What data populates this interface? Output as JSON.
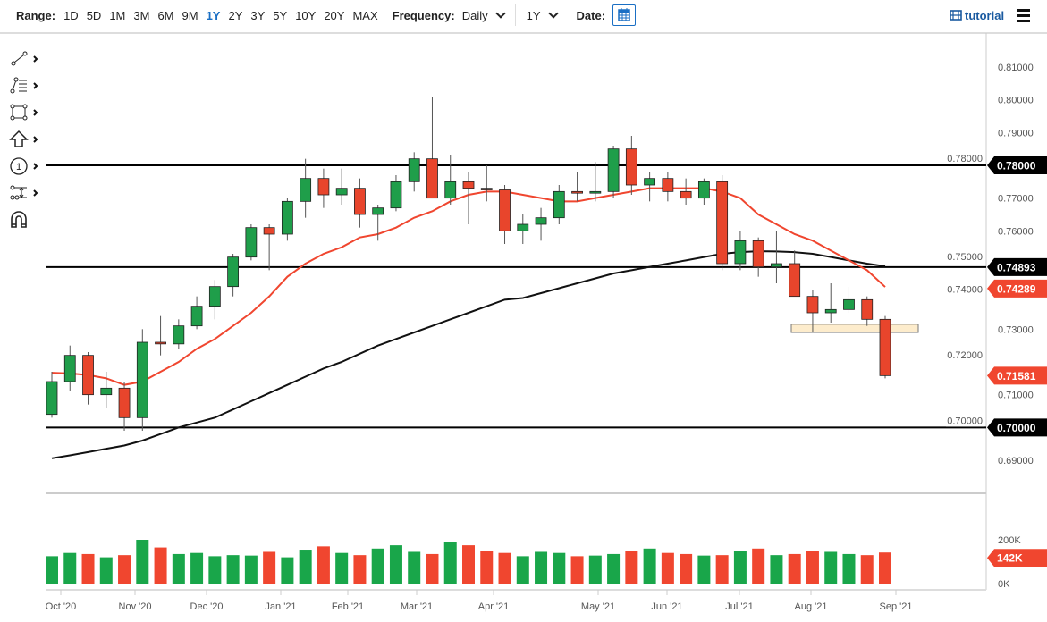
{
  "toolbar": {
    "range_label": "Range:",
    "ranges": [
      "1D",
      "5D",
      "1M",
      "3M",
      "6M",
      "9M",
      "1Y",
      "2Y",
      "3Y",
      "5Y",
      "10Y",
      "20Y",
      "MAX"
    ],
    "active_range": "1Y",
    "frequency_label": "Frequency:",
    "frequency_value": "Daily",
    "period_value": "1Y",
    "date_label": "Date:",
    "tutorial_label": "tutorial"
  },
  "colors": {
    "up": "#1f9e4a",
    "down": "#e8452c",
    "ma_fast": "#f0462f",
    "ma_slow": "#111111",
    "accent": "#1a6fc4",
    "zone": "#fdeccc"
  },
  "chart_data": {
    "type": "candlestick",
    "interval_shown": "weekly approximation of daily candles",
    "x_ticks": [
      "Oct '20",
      "Nov '20",
      "Dec '20",
      "Jan '21",
      "Feb '21",
      "Mar '21",
      "Apr '21",
      "May '21",
      "Jun '21",
      "Jul '21",
      "Aug '21",
      "Sep '21"
    ],
    "y_ticks": [
      "0.81000",
      "0.80000",
      "0.79000",
      "0.78000",
      "0.77000",
      "0.76000",
      "0.75000",
      "0.74000",
      "0.73000",
      "0.72000",
      "0.71000",
      "0.70000",
      "0.69000"
    ],
    "ylim": [
      0.69,
      0.81
    ],
    "weeks": [
      "2020-09-28",
      "2020-10-05",
      "2020-10-12",
      "2020-10-19",
      "2020-10-26",
      "2020-11-02",
      "2020-11-09",
      "2020-11-16",
      "2020-11-23",
      "2020-11-30",
      "2020-12-07",
      "2020-12-14",
      "2020-12-21",
      "2020-12-28",
      "2021-01-04",
      "2021-01-11",
      "2021-01-18",
      "2021-01-25",
      "2021-02-01",
      "2021-02-08",
      "2021-02-15",
      "2021-02-22",
      "2021-03-01",
      "2021-03-08",
      "2021-03-15",
      "2021-03-22",
      "2021-03-29",
      "2021-04-05",
      "2021-04-12",
      "2021-04-19",
      "2021-04-26",
      "2021-05-03",
      "2021-05-10",
      "2021-05-17",
      "2021-05-24",
      "2021-05-31",
      "2021-06-07",
      "2021-06-14",
      "2021-06-21",
      "2021-06-28",
      "2021-07-05",
      "2021-07-12",
      "2021-07-19",
      "2021-07-26",
      "2021-08-02",
      "2021-08-09",
      "2021-08-16"
    ],
    "ohlc": [
      [
        0.704,
        0.717,
        0.703,
        0.714
      ],
      [
        0.714,
        0.725,
        0.711,
        0.722
      ],
      [
        0.722,
        0.723,
        0.707,
        0.71
      ],
      [
        0.71,
        0.717,
        0.706,
        0.712
      ],
      [
        0.712,
        0.714,
        0.699,
        0.703
      ],
      [
        0.703,
        0.73,
        0.699,
        0.726
      ],
      [
        0.726,
        0.734,
        0.722,
        0.7255
      ],
      [
        0.7255,
        0.733,
        0.724,
        0.731
      ],
      [
        0.731,
        0.74,
        0.73,
        0.737
      ],
      [
        0.737,
        0.745,
        0.733,
        0.743
      ],
      [
        0.743,
        0.753,
        0.74,
        0.752
      ],
      [
        0.752,
        0.762,
        0.751,
        0.761
      ],
      [
        0.761,
        0.762,
        0.748,
        0.759
      ],
      [
        0.759,
        0.77,
        0.757,
        0.769
      ],
      [
        0.769,
        0.782,
        0.764,
        0.776
      ],
      [
        0.776,
        0.779,
        0.767,
        0.771
      ],
      [
        0.771,
        0.779,
        0.768,
        0.773
      ],
      [
        0.773,
        0.776,
        0.761,
        0.765
      ],
      [
        0.765,
        0.768,
        0.757,
        0.767
      ],
      [
        0.767,
        0.777,
        0.766,
        0.775
      ],
      [
        0.775,
        0.784,
        0.772,
        0.782
      ],
      [
        0.782,
        0.801,
        0.77,
        0.77
      ],
      [
        0.77,
        0.783,
        0.768,
        0.775
      ],
      [
        0.775,
        0.778,
        0.762,
        0.773
      ],
      [
        0.773,
        0.78,
        0.769,
        0.7725
      ],
      [
        0.7725,
        0.774,
        0.756,
        0.76
      ],
      [
        0.76,
        0.765,
        0.756,
        0.762
      ],
      [
        0.762,
        0.767,
        0.757,
        0.764
      ],
      [
        0.764,
        0.774,
        0.762,
        0.772
      ],
      [
        0.772,
        0.778,
        0.769,
        0.7715
      ],
      [
        0.7715,
        0.781,
        0.769,
        0.772
      ],
      [
        0.772,
        0.786,
        0.77,
        0.785
      ],
      [
        0.785,
        0.789,
        0.771,
        0.774
      ],
      [
        0.774,
        0.778,
        0.769,
        0.776
      ],
      [
        0.776,
        0.778,
        0.769,
        0.772
      ],
      [
        0.772,
        0.776,
        0.768,
        0.77
      ],
      [
        0.77,
        0.776,
        0.768,
        0.775
      ],
      [
        0.775,
        0.777,
        0.748,
        0.75
      ],
      [
        0.75,
        0.76,
        0.748,
        0.757
      ],
      [
        0.757,
        0.758,
        0.746,
        0.749
      ],
      [
        0.749,
        0.76,
        0.744,
        0.75
      ],
      [
        0.75,
        0.754,
        0.74,
        0.74
      ],
      [
        0.74,
        0.742,
        0.729,
        0.735
      ],
      [
        0.735,
        0.744,
        0.732,
        0.736
      ],
      [
        0.736,
        0.743,
        0.735,
        0.739
      ],
      [
        0.739,
        0.74,
        0.731,
        0.733
      ],
      [
        0.733,
        0.734,
        0.715,
        0.71581
      ]
    ],
    "volume_k": [
      125,
      140,
      135,
      120,
      130,
      200,
      165,
      135,
      140,
      125,
      130,
      128,
      145,
      120,
      155,
      170,
      140,
      130,
      160,
      175,
      145,
      135,
      190,
      175,
      150,
      140,
      125,
      145,
      140,
      125,
      128,
      135,
      150,
      160,
      140,
      135,
      128,
      130,
      150,
      160,
      130,
      135,
      150,
      145,
      135,
      130,
      142
    ],
    "volume_ticks": [
      "200K",
      "0K"
    ],
    "volume_ylim": [
      0,
      200
    ],
    "ma_fast": [
      0.7167,
      0.7165,
      0.716,
      0.715,
      0.713,
      0.714,
      0.717,
      0.72,
      0.724,
      0.727,
      0.731,
      0.735,
      0.74,
      0.746,
      0.75,
      0.753,
      0.755,
      0.758,
      0.759,
      0.761,
      0.764,
      0.766,
      0.769,
      0.771,
      0.772,
      0.772,
      0.771,
      0.77,
      0.769,
      0.769,
      0.77,
      0.771,
      0.772,
      0.773,
      0.773,
      0.773,
      0.773,
      0.772,
      0.77,
      0.765,
      0.762,
      0.759,
      0.757,
      0.754,
      0.751,
      0.748,
      0.74289
    ],
    "ma_slow": [
      0.6906,
      0.6915,
      0.6925,
      0.6935,
      0.6945,
      0.696,
      0.698,
      0.7,
      0.7015,
      0.703,
      0.7055,
      0.708,
      0.7105,
      0.713,
      0.7155,
      0.718,
      0.72,
      0.7225,
      0.725,
      0.727,
      0.729,
      0.731,
      0.733,
      0.735,
      0.737,
      0.739,
      0.7395,
      0.741,
      0.7425,
      0.744,
      0.7455,
      0.747,
      0.748,
      0.749,
      0.75,
      0.751,
      0.752,
      0.753,
      0.7535,
      0.7538,
      0.7537,
      0.7535,
      0.753,
      0.752,
      0.751,
      0.75,
      0.7492
    ],
    "horizontal_lines": [
      0.78,
      0.74893,
      0.7
    ],
    "support_zone": [
      0.729,
      0.7315
    ],
    "badges": {
      "line_1": "0.78000",
      "line_2": "0.74893",
      "line_3": "0.70000",
      "ma_fast_last": "0.74289",
      "last_price": "0.71581",
      "last_volume": "142K"
    }
  }
}
